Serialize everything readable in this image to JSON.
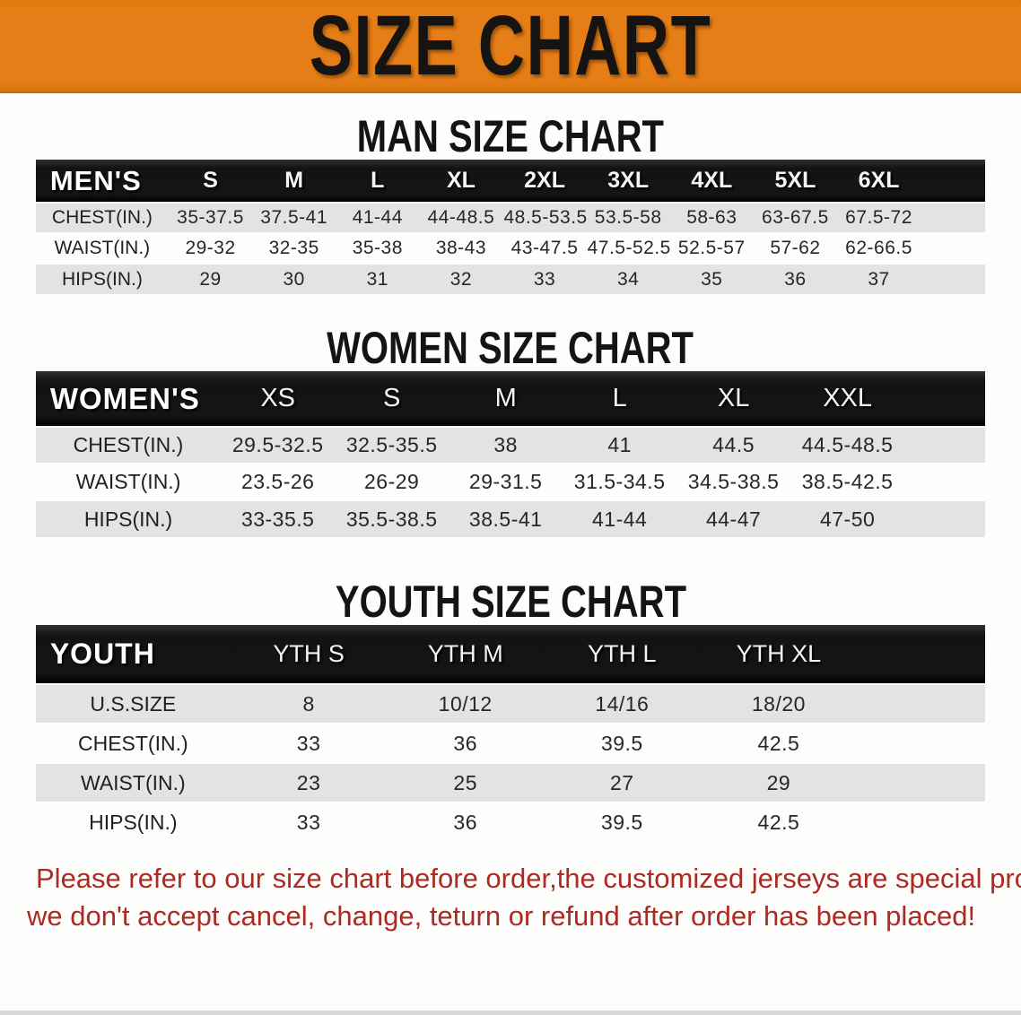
{
  "banner": {
    "title": "SIZE CHART",
    "bg_color": "#e67e17",
    "text_color": "#161412"
  },
  "sections": [
    {
      "heading": "MAN SIZE CHART",
      "header_label": "MEN'S",
      "columns": [
        "S",
        "M",
        "L",
        "XL",
        "2XL",
        "3XL",
        "4XL",
        "5XL",
        "6XL"
      ],
      "rows": [
        {
          "label": "CHEST(IN.)",
          "values": [
            "35-37.5",
            "37.5-41",
            "41-44",
            "44-48.5",
            "48.5-53.5",
            "53.5-58",
            "58-63",
            "63-67.5",
            "67.5-72"
          ]
        },
        {
          "label": "WAIST(IN.)",
          "values": [
            "29-32",
            "32-35",
            "35-38",
            "38-43",
            "43-47.5",
            "47.5-52.5",
            "52.5-57",
            "57-62",
            "62-66.5"
          ]
        },
        {
          "label": "HIPS(IN.)",
          "values": [
            "29",
            "30",
            "31",
            "32",
            "33",
            "34",
            "35",
            "36",
            "37"
          ]
        }
      ]
    },
    {
      "heading": "WOMEN SIZE CHART",
      "header_label": "WOMEN'S",
      "columns": [
        "XS",
        "S",
        "M",
        "L",
        "XL",
        "XXL"
      ],
      "rows": [
        {
          "label": "CHEST(IN.)",
          "values": [
            "29.5-32.5",
            "32.5-35.5",
            "38",
            "41",
            "44.5",
            "44.5-48.5"
          ]
        },
        {
          "label": "WAIST(IN.)",
          "values": [
            "23.5-26",
            "26-29",
            "29-31.5",
            "31.5-34.5",
            "34.5-38.5",
            "38.5-42.5"
          ]
        },
        {
          "label": "HIPS(IN.)",
          "values": [
            "33-35.5",
            "35.5-38.5",
            "38.5-41",
            "41-44",
            "44-47",
            "47-50"
          ]
        }
      ]
    },
    {
      "heading": "YOUTH SIZE CHART",
      "header_label": "YOUTH",
      "columns": [
        "YTH S",
        "YTH M",
        "YTH L",
        "YTH XL"
      ],
      "rows": [
        {
          "label": "U.S.SIZE",
          "values": [
            "8",
            "10/12",
            "14/16",
            "18/20"
          ]
        },
        {
          "label": "CHEST(IN.)",
          "values": [
            "33",
            "36",
            "39.5",
            "42.5"
          ]
        },
        {
          "label": "WAIST(IN.)",
          "values": [
            "23",
            "25",
            "27",
            "29"
          ]
        },
        {
          "label": "HIPS(IN.)",
          "values": [
            "33",
            "36",
            "39.5",
            "42.5"
          ]
        }
      ]
    }
  ],
  "disclaimer": {
    "line1": "Please refer to our size chart before order,the customized jerseys are special products,",
    "line2": "we don't accept cancel, change, teturn or refund after order has been placed!",
    "color": "#ad2a22"
  }
}
